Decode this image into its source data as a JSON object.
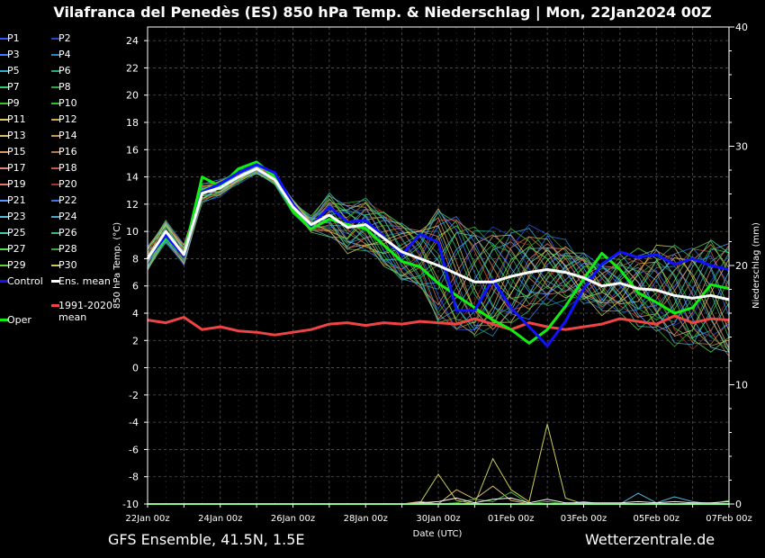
{
  "title": "Vilafranca del Penedès  (ES)  850 hPa Temp. & Niederschlag | Mon, 22Jan2024 00Z",
  "footer": {
    "left": "GFS Ensemble, 41.5N, 1.5E",
    "right": "Wetterzentrale.de"
  },
  "legend": {
    "items": [
      {
        "label": "P1",
        "color": "#3355ff"
      },
      {
        "label": "P2",
        "color": "#2244dd"
      },
      {
        "label": "P3",
        "color": "#4477ff"
      },
      {
        "label": "P4",
        "color": "#2288cc"
      },
      {
        "label": "P5",
        "color": "#33aacc"
      },
      {
        "label": "P6",
        "color": "#22aa88"
      },
      {
        "label": "P7",
        "color": "#33cc66"
      },
      {
        "label": "P8",
        "color": "#22aa44"
      },
      {
        "label": "P9",
        "color": "#44bb33"
      },
      {
        "label": "P10",
        "color": "#22cc22"
      },
      {
        "label": "P11",
        "color": "#ddcc66"
      },
      {
        "label": "P12",
        "color": "#ccaa44"
      },
      {
        "label": "P13",
        "color": "#ddbb77"
      },
      {
        "label": "P14",
        "color": "#cc9955"
      },
      {
        "label": "P15",
        "color": "#dd9966"
      },
      {
        "label": "P16",
        "color": "#bb7744"
      },
      {
        "label": "P17",
        "color": "#dd8877"
      },
      {
        "label": "P18",
        "color": "#cc5544"
      },
      {
        "label": "P19",
        "color": "#dd7766"
      },
      {
        "label": "P20",
        "color": "#aa3322"
      },
      {
        "label": "P21",
        "color": "#5599ff"
      },
      {
        "label": "P22",
        "color": "#3377ee"
      },
      {
        "label": "P23",
        "color": "#55bbdd"
      },
      {
        "label": "P24",
        "color": "#44aacc"
      },
      {
        "label": "P25",
        "color": "#44ccaa"
      },
      {
        "label": "P26",
        "color": "#33bb77"
      },
      {
        "label": "P27",
        "color": "#55dd55"
      },
      {
        "label": "P28",
        "color": "#33aa33"
      },
      {
        "label": "P29",
        "color": "#66cc44"
      },
      {
        "label": "P30",
        "color": "#cccc55"
      }
    ],
    "control": {
      "label": "Control",
      "color": "#1111ff"
    },
    "ens_mean": {
      "label": "Ens. mean",
      "color": "#ffffff"
    },
    "climate": {
      "label": "1991-2020 mean",
      "line1": "1991-2020",
      "line2": "mean",
      "color": "#ee4444"
    },
    "oper": {
      "label": "Oper",
      "color": "#11ee11"
    }
  },
  "chart_data": {
    "type": "line",
    "xlabel": "Date (UTC)",
    "ylabel": "850 hPa Temp. (°C)",
    "y2label": "Niederschlag (mm)",
    "ylim": [
      -10,
      25
    ],
    "y2lim": [
      0,
      40
    ],
    "yticks": [
      -10,
      -8,
      -6,
      -4,
      -2,
      0,
      2,
      4,
      6,
      8,
      10,
      12,
      14,
      16,
      18,
      20,
      22,
      24
    ],
    "y2ticks": [
      0,
      10,
      20,
      30,
      40
    ],
    "xticks": [
      "22Jan 00z",
      "24Jan 00z",
      "26Jan 00z",
      "28Jan 00z",
      "30Jan 00z",
      "01Feb 00z",
      "03Feb 00z",
      "05Feb 00z",
      "07Feb 00z"
    ],
    "x_hours": [
      0,
      12,
      24,
      36,
      48,
      60,
      72,
      84,
      96,
      108,
      120,
      132,
      144,
      156,
      168,
      180,
      192,
      204,
      216,
      228,
      240,
      252,
      264,
      276,
      288,
      300,
      312,
      324,
      336,
      348,
      360,
      372,
      384
    ],
    "grid": true,
    "series": [
      {
        "name": "Ens. mean",
        "color": "#ffffff",
        "values": [
          8,
          10,
          8.3,
          12.8,
          13.2,
          14,
          14.6,
          13.8,
          11.8,
          10.5,
          11.2,
          10.3,
          10.5,
          9.5,
          8.5,
          8.0,
          7.5,
          6.9,
          6.3,
          6.3,
          6.7,
          7.0,
          7.2,
          7.0,
          6.6,
          6.0,
          6.2,
          5.8,
          5.7,
          5.3,
          5.1,
          5.3,
          5.0
        ]
      },
      {
        "name": "Control",
        "color": "#1111ff",
        "values": [
          8,
          9.7,
          8.2,
          12.9,
          13.5,
          14.3,
          14.9,
          14.3,
          12.0,
          10.4,
          11.8,
          10.7,
          10.8,
          9.6,
          8.3,
          9.8,
          9.2,
          4.2,
          4.2,
          6.5,
          4.4,
          3.0,
          1.6,
          3.4,
          5.8,
          7.6,
          8.5,
          8.1,
          8.3,
          7.6,
          8.0,
          7.5,
          7.2
        ]
      },
      {
        "name": "Oper",
        "color": "#11ee11",
        "values": [
          8,
          9.5,
          8.3,
          14.0,
          13.3,
          14.6,
          15.1,
          14.0,
          11.5,
          10.2,
          10.9,
          10.5,
          10.2,
          9.0,
          7.8,
          7.4,
          6.2,
          5.3,
          4.4,
          3.5,
          2.8,
          1.8,
          2.8,
          4.5,
          6.5,
          8.4,
          7.2,
          5.5,
          4.8,
          4.0,
          4.4,
          6.1,
          5.8
        ]
      },
      {
        "name": "1991-2020 mean",
        "color": "#ee4444",
        "values": [
          3.5,
          3.3,
          3.7,
          2.8,
          3.0,
          2.7,
          2.6,
          2.4,
          2.6,
          2.8,
          3.2,
          3.3,
          3.1,
          3.3,
          3.2,
          3.4,
          3.3,
          3.2,
          3.6,
          3.2,
          2.8,
          3.3,
          3.0,
          2.8,
          3.0,
          3.2,
          3.6,
          3.4,
          3.2,
          3.8,
          3.3,
          3.6,
          3.5
        ]
      }
    ],
    "precip_series": [
      {
        "name": "P30",
        "color": "#cccc55",
        "values": [
          0,
          0,
          0,
          0,
          0,
          0,
          0,
          0,
          0,
          0,
          0,
          0,
          0,
          0,
          0,
          0.1,
          2.5,
          0.3,
          0,
          3.8,
          1.2,
          0.2,
          6.7,
          0.5,
          0,
          0,
          0,
          0,
          0,
          0,
          0,
          0,
          0
        ]
      },
      {
        "name": "P13",
        "color": "#ddbb77",
        "values": [
          0,
          0,
          0,
          0,
          0,
          0,
          0,
          0,
          0,
          0,
          0,
          0,
          0,
          0,
          0,
          0.2,
          0,
          1.2,
          0.4,
          1.5,
          0.3,
          0,
          0,
          0,
          0.1,
          0,
          0,
          0,
          0,
          0,
          0,
          0,
          0
        ]
      },
      {
        "name": "P9",
        "color": "#44bb33",
        "values": [
          0,
          0,
          0,
          0,
          0,
          0,
          0,
          0,
          0,
          0,
          0,
          0,
          0,
          0,
          0,
          0,
          0,
          0.1,
          0.4,
          0.2,
          1.0,
          0,
          0.2,
          0,
          0,
          0,
          0,
          0,
          0,
          0,
          0,
          0,
          0.3
        ]
      },
      {
        "name": "P23",
        "color": "#55bbdd",
        "values": [
          0,
          0,
          0,
          0,
          0,
          0,
          0,
          0,
          0,
          0,
          0,
          0,
          0,
          0,
          0,
          0,
          0,
          0,
          0,
          0,
          0,
          0,
          0,
          0,
          0.2,
          0,
          0,
          0.9,
          0.1,
          0.6,
          0.2,
          0,
          0
        ]
      },
      {
        "name": "Control",
        "color": "#1111ff",
        "values": [
          0,
          0,
          0,
          0,
          0,
          0,
          0,
          0,
          0,
          0,
          0,
          0,
          0,
          0,
          0,
          0,
          0,
          0,
          0,
          0,
          0,
          0,
          0,
          0,
          0,
          0,
          0,
          0,
          0,
          0,
          0,
          0,
          0
        ]
      },
      {
        "name": "Ens. mean",
        "color": "#ffffff",
        "values": [
          0,
          0,
          0,
          0,
          0,
          0,
          0,
          0,
          0,
          0,
          0,
          0,
          0,
          0,
          0,
          0.1,
          0.2,
          0.5,
          0.1,
          0.4,
          0.5,
          0.1,
          0.4,
          0.1,
          0.1,
          0.1,
          0.1,
          0.2,
          0.1,
          0.2,
          0.1,
          0.1,
          0.2
        ]
      },
      {
        "name": "Oper",
        "color": "#11ee11",
        "values": [
          0,
          0,
          0,
          0,
          0,
          0,
          0,
          0,
          0,
          0,
          0,
          0,
          0,
          0,
          0,
          0,
          0,
          0,
          0,
          0,
          0,
          0,
          0,
          0,
          0,
          0,
          0,
          0,
          0,
          0,
          0,
          0,
          0
        ]
      }
    ]
  }
}
